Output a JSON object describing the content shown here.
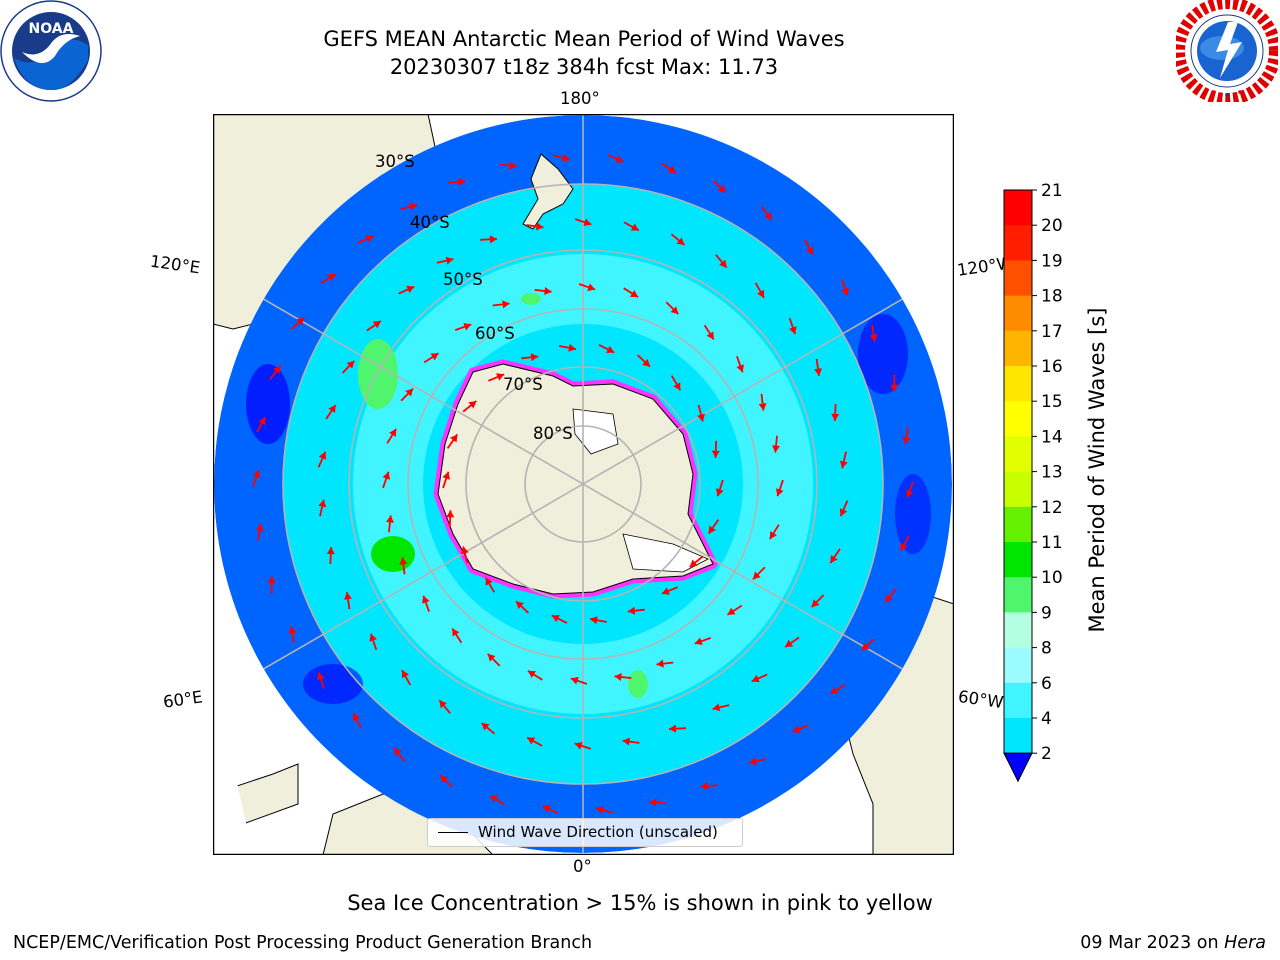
{
  "title_line1": "GEFS MEAN Antarctic Mean Period of Wind Waves",
  "title_line2": "20230307 t18z 384h fcst   Max: 11.73",
  "caption": "Sea Ice Concentration > 15% is shown in pink to yellow",
  "footer_left": "NCEP/EMC/Verification Post Processing Product Generation Branch",
  "footer_right_date": "09 Mar 2023 on ",
  "footer_right_host": "Hera",
  "legend_entry": "Wind Wave Direction (unscaled)",
  "noaa_logo_text": "NOAA",
  "longitude_labels": {
    "top": "180°",
    "bottom": "0°",
    "left_upper": "120°E",
    "left_lower": "60°E",
    "right_upper": "120°W",
    "right_lower": "60°W"
  },
  "latitude_labels": [
    "30°S",
    "40°S",
    "50°S",
    "60°S",
    "70°S",
    "80°S"
  ],
  "colorbar": {
    "label": "Mean Period of Wind Waves [s]",
    "ticks": [
      "2",
      "4",
      "6",
      "8",
      "9",
      "10",
      "11",
      "12",
      "13",
      "14",
      "15",
      "16",
      "17",
      "18",
      "19",
      "20",
      "21"
    ],
    "colors": [
      "#0064ff",
      "#00e6ff",
      "#40f5ff",
      "#9bfbff",
      "#b4ffe1",
      "#50f56e",
      "#00e600",
      "#64f000",
      "#c8ff00",
      "#e1ff00",
      "#ffff00",
      "#ffe600",
      "#ffb400",
      "#ff8c00",
      "#ff5000",
      "#ff1e00",
      "#ff0000"
    ],
    "under_color": "#0000ff"
  },
  "colors": {
    "land": "#efefdc",
    "ocean_light": "#40f5ff",
    "ocean_cyan": "#00e6ff",
    "ocean_blue": "#0064ff",
    "ocean_dark": "#0000ff",
    "green": "#50f56e",
    "arrow": "#ff0000",
    "sea_ice": "#ff32ff",
    "grid": "#b4b4b4"
  }
}
